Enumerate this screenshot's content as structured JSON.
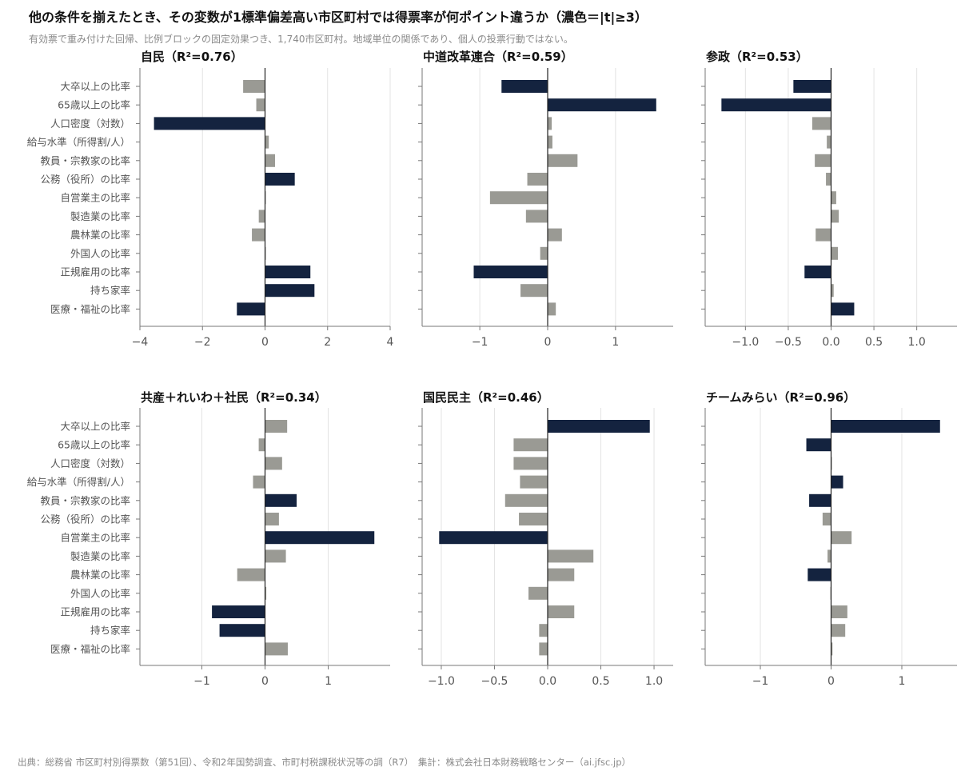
{
  "title": "他の条件を揃えたとき、その変数が1標準偏差高い市区町村では得票率が何ポイント違うか（濃色＝|t|≥3）",
  "subtitle": "有効票で重み付けた回帰、比例ブロックの固定効果つき、1,740市区町村。地域単位の関係であり、個人の投票行動ではない。",
  "source": "出典：総務省 市区町村別得票数（第51回）、令和2年国勢調査、市町村税課税状況等の調（R7）　集計：株式会社日本財務戦略センター（ai.jfsc.jp）",
  "colors": {
    "significant": "#14233f",
    "not_significant": "#9a9a94",
    "grid": "#e3e3e3",
    "axis": "#777777",
    "zero": "#222222"
  },
  "chart_data": [
    {
      "type": "bar",
      "orientation": "horizontal",
      "title": "自民（R²=0.76）",
      "categories": [
        "大卒以上の比率",
        "65歳以上の比率",
        "人口密度（対数）",
        "給与水準（所得割/人）",
        "教員・宗教家の比率",
        "公務（役所）の比率",
        "自営業主の比率",
        "製造業の比率",
        "農林業の比率",
        "外国人の比率",
        "正規雇用の比率",
        "持ち家率",
        "医療・福祉の比率"
      ],
      "values": [
        -0.7,
        -0.28,
        -3.55,
        0.12,
        0.32,
        0.95,
        0.02,
        -0.2,
        -0.42,
        0.02,
        1.45,
        1.58,
        -0.9
      ],
      "significant": [
        false,
        false,
        true,
        false,
        false,
        true,
        false,
        false,
        false,
        false,
        true,
        true,
        true
      ],
      "xlim": [
        -4.0,
        4.0
      ],
      "xticks": [
        -4,
        -2,
        0,
        2,
        4
      ],
      "xtick_labels": [
        "−4",
        "−2",
        "0",
        "2",
        "4"
      ]
    },
    {
      "type": "bar",
      "orientation": "horizontal",
      "title": "中道改革連合（R²=0.59）",
      "categories": [
        "大卒以上の比率",
        "65歳以上の比率",
        "人口密度（対数）",
        "給与水準（所得割/人）",
        "教員・宗教家の比率",
        "公務（役所）の比率",
        "自営業主の比率",
        "製造業の比率",
        "農林業の比率",
        "外国人の比率",
        "正規雇用の比率",
        "持ち家率",
        "医療・福祉の比率"
      ],
      "values": [
        -0.68,
        1.6,
        0.06,
        0.07,
        0.44,
        -0.3,
        -0.85,
        -0.32,
        0.21,
        -0.11,
        -1.09,
        -0.4,
        0.12
      ],
      "significant": [
        true,
        true,
        false,
        false,
        false,
        false,
        false,
        false,
        false,
        false,
        true,
        false,
        false
      ],
      "xlim": [
        -1.85,
        1.85
      ],
      "xticks": [
        -1,
        0,
        1
      ],
      "xtick_labels": [
        "−1",
        "0",
        "1"
      ]
    },
    {
      "type": "bar",
      "orientation": "horizontal",
      "title": "参政（R²=0.53）",
      "categories": [
        "大卒以上の比率",
        "65歳以上の比率",
        "人口密度（対数）",
        "給与水準（所得割/人）",
        "教員・宗教家の比率",
        "公務（役所）の比率",
        "自営業主の比率",
        "製造業の比率",
        "農林業の比率",
        "外国人の比率",
        "正規雇用の比率",
        "持ち家率",
        "医療・福祉の比率"
      ],
      "values": [
        -0.44,
        -1.28,
        -0.22,
        -0.05,
        -0.19,
        -0.06,
        0.06,
        0.09,
        -0.18,
        0.08,
        -0.31,
        0.03,
        0.27
      ],
      "significant": [
        true,
        true,
        false,
        false,
        false,
        false,
        false,
        false,
        false,
        false,
        true,
        false,
        true
      ],
      "xlim": [
        -1.47,
        1.47
      ],
      "xticks": [
        -1.0,
        -0.5,
        0.0,
        0.5,
        1.0
      ],
      "xtick_labels": [
        "−1.0",
        "−0.5",
        "0.0",
        "0.5",
        "1.0"
      ]
    },
    {
      "type": "bar",
      "orientation": "horizontal",
      "title": "共産＋れいわ＋社民（R²=0.34）",
      "categories": [
        "大卒以上の比率",
        "65歳以上の比率",
        "人口密度（対数）",
        "給与水準（所得割/人）",
        "教員・宗教家の比率",
        "公務（役所）の比率",
        "自営業主の比率",
        "製造業の比率",
        "農林業の比率",
        "外国人の比率",
        "正規雇用の比率",
        "持ち家率",
        "医療・福祉の比率"
      ],
      "values": [
        0.35,
        -0.1,
        0.27,
        -0.19,
        0.5,
        0.22,
        1.73,
        0.33,
        -0.44,
        0.02,
        -0.84,
        -0.72,
        0.36
      ],
      "significant": [
        false,
        false,
        false,
        false,
        true,
        false,
        true,
        false,
        false,
        false,
        true,
        true,
        false
      ],
      "xlim": [
        -1.98,
        1.98
      ],
      "xticks": [
        -1,
        0,
        1
      ],
      "xtick_labels": [
        "−1",
        "0",
        "1"
      ]
    },
    {
      "type": "bar",
      "orientation": "horizontal",
      "title": "国民民主（R²=0.46）",
      "categories": [
        "大卒以上の比率",
        "65歳以上の比率",
        "人口密度（対数）",
        "給与水準（所得割/人）",
        "教員・宗教家の比率",
        "公務（役所）の比率",
        "自営業主の比率",
        "製造業の比率",
        "農林業の比率",
        "外国人の比率",
        "正規雇用の比率",
        "持ち家率",
        "医療・福祉の比率"
      ],
      "values": [
        0.96,
        -0.32,
        -0.32,
        -0.26,
        -0.4,
        -0.27,
        -1.02,
        0.43,
        0.25,
        -0.18,
        0.25,
        -0.08,
        -0.08
      ],
      "significant": [
        true,
        false,
        false,
        false,
        false,
        false,
        true,
        false,
        false,
        false,
        false,
        false,
        false
      ],
      "xlim": [
        -1.18,
        1.18
      ],
      "xticks": [
        -1.0,
        -0.5,
        0.0,
        0.5,
        1.0
      ],
      "xtick_labels": [
        "−1.0",
        "−0.5",
        "0.0",
        "0.5",
        "1.0"
      ]
    },
    {
      "type": "bar",
      "orientation": "horizontal",
      "title": "チームみらい（R²=0.96）",
      "categories": [
        "大卒以上の比率",
        "65歳以上の比率",
        "人口密度（対数）",
        "給与水準（所得割/人）",
        "教員・宗教家の比率",
        "公務（役所）の比率",
        "自営業主の比率",
        "製造業の比率",
        "農林業の比率",
        "外国人の比率",
        "正規雇用の比率",
        "持ち家率",
        "医療・福祉の比率"
      ],
      "values": [
        1.54,
        -0.35,
        0.0,
        0.17,
        -0.31,
        -0.12,
        0.29,
        -0.05,
        -0.33,
        -0.01,
        0.23,
        0.2,
        0.02
      ],
      "significant": [
        true,
        true,
        false,
        true,
        true,
        false,
        false,
        false,
        true,
        false,
        false,
        false,
        false
      ],
      "xlim": [
        -1.78,
        1.78
      ],
      "xticks": [
        -1,
        0,
        1
      ],
      "xtick_labels": [
        "−1",
        "0",
        "1"
      ]
    }
  ]
}
